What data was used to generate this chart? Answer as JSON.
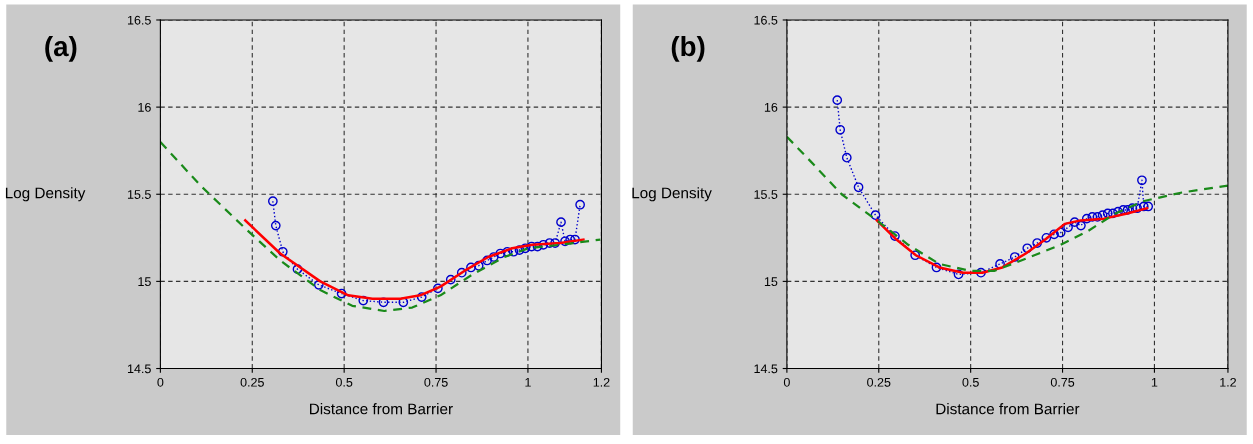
{
  "chart_data": [
    {
      "type": "line",
      "title": "(a)",
      "xlabel": "Distance from Barrier",
      "ylabel": "Log Density",
      "xlim": [
        0,
        1.2
      ],
      "ylim": [
        14.5,
        16.5
      ],
      "xticks": [
        0,
        0.25,
        0.5,
        0.75,
        1,
        1.2
      ],
      "yticks": [
        14.5,
        15,
        15.5,
        16,
        16.5
      ],
      "grid": true,
      "legend": false,
      "series": [
        {
          "color": "#0000cc",
          "marker": "circle",
          "line_style": "dotted",
          "x": [
            0.306,
            0.314,
            0.333,
            0.373,
            0.431,
            0.493,
            0.552,
            0.607,
            0.661,
            0.711,
            0.755,
            0.79,
            0.82,
            0.845,
            0.866,
            0.889,
            0.907,
            0.925,
            0.944,
            0.961,
            0.977,
            0.993,
            1.01,
            1.026,
            1.042,
            1.059,
            1.074,
            1.09,
            1.101,
            1.115,
            1.128,
            1.142
          ],
          "values": [
            15.46,
            15.32,
            15.17,
            15.07,
            14.98,
            14.93,
            14.89,
            14.88,
            14.88,
            14.91,
            14.96,
            15.01,
            15.05,
            15.08,
            15.09,
            15.12,
            15.14,
            15.16,
            15.17,
            15.17,
            15.18,
            15.19,
            15.2,
            15.2,
            15.21,
            15.22,
            15.22,
            15.34,
            15.23,
            15.24,
            15.24,
            15.44
          ]
        },
        {
          "color": "#ff0000",
          "marker": "none",
          "line_style": "solid",
          "x": [
            0.231,
            0.326,
            0.435,
            0.511,
            0.577,
            0.653,
            0.707,
            0.762,
            0.827,
            0.892,
            0.957,
            1.012,
            1.088,
            1.151
          ],
          "values": [
            15.35,
            15.16,
            15.0,
            14.92,
            14.9,
            14.9,
            14.92,
            14.97,
            15.06,
            15.14,
            15.19,
            15.21,
            15.22,
            15.24
          ]
        },
        {
          "color": "#1a8a1a",
          "marker": "none",
          "line_style": "dashed",
          "x": [
            0,
            0.109,
            0.228,
            0.326,
            0.435,
            0.522,
            0.609,
            0.685,
            0.762,
            0.849,
            0.936,
            1.001,
            1.088,
            1.197
          ],
          "values": [
            15.8,
            15.55,
            15.31,
            15.12,
            14.95,
            14.86,
            14.83,
            14.85,
            14.92,
            15.04,
            15.14,
            15.19,
            15.21,
            15.24
          ]
        }
      ]
    },
    {
      "type": "line",
      "title": "(b)",
      "xlabel": "Distance from Barrier",
      "ylabel": "Log Density",
      "xlim": [
        0,
        1.2
      ],
      "ylim": [
        14.5,
        16.5
      ],
      "xticks": [
        0,
        0.25,
        0.5,
        0.75,
        1,
        1.2
      ],
      "yticks": [
        14.5,
        15,
        15.5,
        16,
        16.5
      ],
      "grid": true,
      "legend": false,
      "series": [
        {
          "color": "#0000cc",
          "marker": "circle",
          "line_style": "dotted",
          "x": [
            0.137,
            0.145,
            0.163,
            0.195,
            0.241,
            0.294,
            0.349,
            0.407,
            0.467,
            0.528,
            0.58,
            0.62,
            0.654,
            0.681,
            0.706,
            0.727,
            0.745,
            0.765,
            0.783,
            0.8,
            0.816,
            0.831,
            0.845,
            0.859,
            0.873,
            0.887,
            0.901,
            0.915,
            0.927,
            0.94,
            0.953,
            0.966,
            0.971,
            0.983
          ],
          "values": [
            16.04,
            15.87,
            15.71,
            15.54,
            15.38,
            15.26,
            15.15,
            15.08,
            15.04,
            15.05,
            15.1,
            15.14,
            15.19,
            15.22,
            15.25,
            15.27,
            15.28,
            15.31,
            15.34,
            15.32,
            15.36,
            15.37,
            15.37,
            15.38,
            15.39,
            15.39,
            15.4,
            15.41,
            15.41,
            15.42,
            15.42,
            15.58,
            15.43,
            15.43
          ]
        },
        {
          "color": "#ff0000",
          "marker": "none",
          "line_style": "solid",
          "x": [
            0.245,
            0.298,
            0.351,
            0.415,
            0.479,
            0.532,
            0.586,
            0.65,
            0.703,
            0.756,
            0.799,
            0.863,
            0.926,
            0.98
          ],
          "values": [
            15.35,
            15.24,
            15.15,
            15.08,
            15.05,
            15.05,
            15.08,
            15.16,
            15.24,
            15.33,
            15.35,
            15.36,
            15.39,
            15.42
          ]
        },
        {
          "color": "#1a8a1a",
          "marker": "none",
          "line_style": "dashed",
          "x": [
            0,
            0.064,
            0.149,
            0.245,
            0.33,
            0.415,
            0.5,
            0.564,
            0.65,
            0.745,
            0.82,
            0.894,
            0.969,
            1.075,
            1.2
          ],
          "values": [
            15.83,
            15.69,
            15.5,
            15.35,
            15.21,
            15.1,
            15.06,
            15.06,
            15.13,
            15.21,
            15.29,
            15.39,
            15.46,
            15.51,
            15.55
          ]
        }
      ]
    }
  ]
}
